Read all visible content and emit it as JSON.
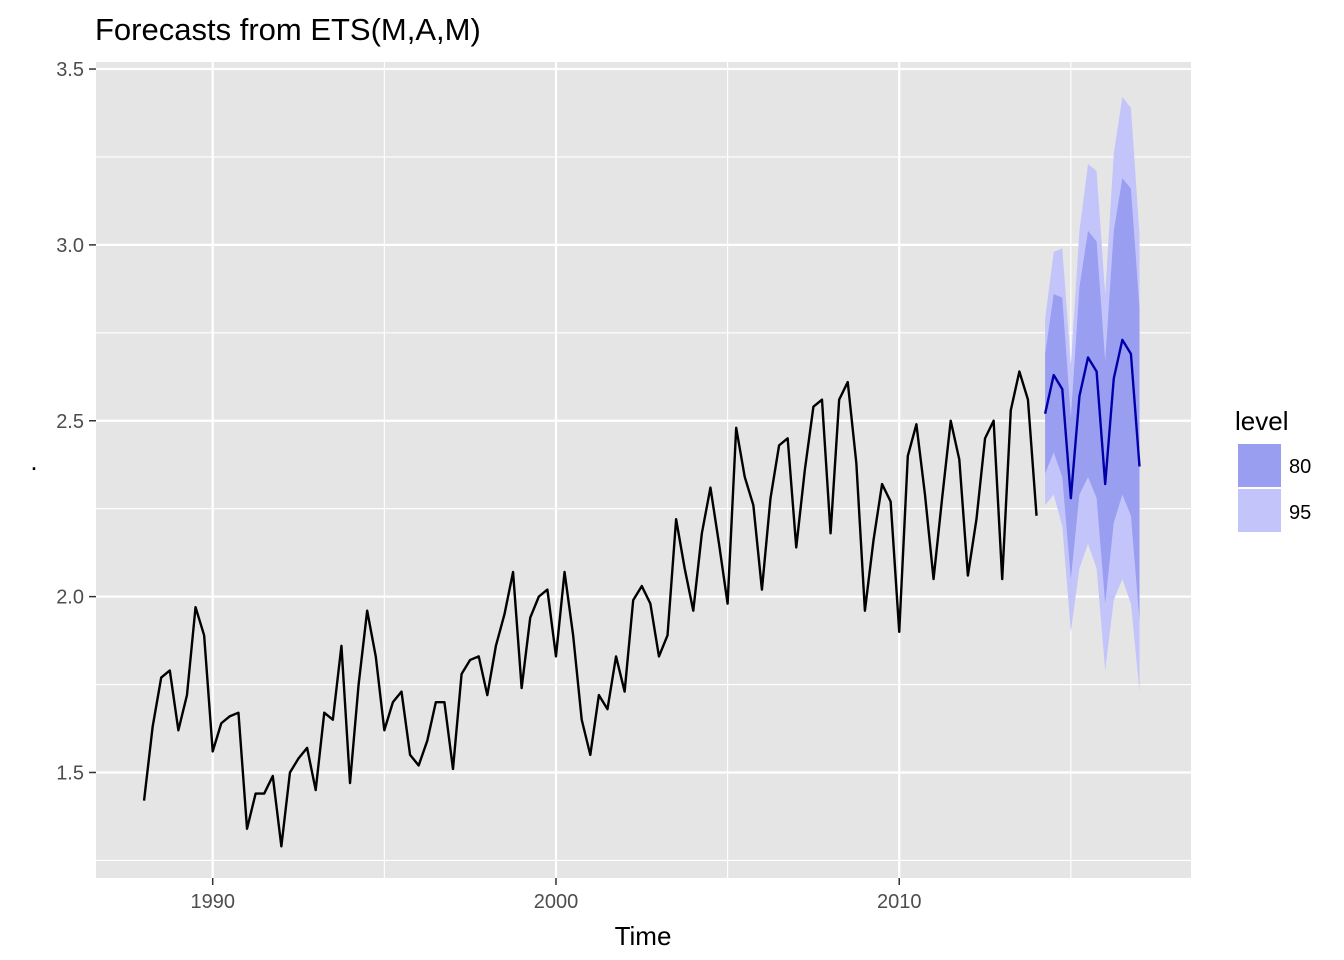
{
  "chart_data": {
    "type": "line",
    "title": "Forecasts from ETS(M,A,M)",
    "xlabel": "Time",
    "ylabel": ".",
    "xlim": [
      1986.6,
      2018.5
    ],
    "ylim": [
      1.2,
      3.52
    ],
    "x_ticks": [
      1990,
      2000,
      2010
    ],
    "x_tick_labels": [
      "1990",
      "2000",
      "2010"
    ],
    "y_ticks": [
      1.5,
      2.0,
      2.5,
      3.0,
      3.5
    ],
    "y_tick_labels": [
      "1.5",
      "2.0",
      "2.5",
      "3.0",
      "3.5"
    ],
    "grid": true,
    "legend": {
      "title": "level",
      "placement": "right",
      "entries": [
        {
          "label": "80",
          "color": "#9a9ef0"
        },
        {
          "label": "95",
          "color": "#c3c5fa"
        }
      ]
    },
    "colors": {
      "panel": "#e5e5e5",
      "grid": "#ffffff",
      "history_line": "#000000",
      "forecast_line": "#0000aa",
      "band80": "#9a9ef0",
      "band95": "#c3c5fa"
    },
    "history": {
      "x_start": 1988.0,
      "step": 0.25,
      "values": [
        1.42,
        1.63,
        1.77,
        1.79,
        1.62,
        1.72,
        1.97,
        1.89,
        1.56,
        1.64,
        1.66,
        1.67,
        1.34,
        1.44,
        1.44,
        1.49,
        1.29,
        1.5,
        1.54,
        1.57,
        1.45,
        1.67,
        1.65,
        1.86,
        1.47,
        1.75,
        1.96,
        1.83,
        1.62,
        1.7,
        1.73,
        1.55,
        1.52,
        1.59,
        1.7,
        1.7,
        1.51,
        1.78,
        1.82,
        1.83,
        1.72,
        1.86,
        1.95,
        2.07,
        1.74,
        1.94,
        2.0,
        2.02,
        1.83,
        2.07,
        1.89,
        1.65,
        1.55,
        1.72,
        1.68,
        1.83,
        1.73,
        1.99,
        2.03,
        1.98,
        1.83,
        1.89,
        2.22,
        2.08,
        1.96,
        2.18,
        2.31,
        2.15,
        1.98,
        2.48,
        2.34,
        2.26,
        2.02,
        2.28,
        2.43,
        2.45,
        2.14,
        2.36,
        2.54,
        2.56,
        2.18,
        2.56,
        2.61,
        2.38,
        1.96,
        2.16,
        2.32,
        2.27,
        1.9,
        2.4,
        2.49,
        2.29,
        2.05,
        2.28,
        2.5,
        2.39,
        2.06,
        2.22,
        2.45,
        2.5,
        2.05,
        2.53,
        2.64,
        2.56,
        2.23
      ]
    },
    "forecast": {
      "x_start": 2014.25,
      "step": 0.25,
      "mean": [
        2.52,
        2.63,
        2.59,
        2.28,
        2.57,
        2.68,
        2.64,
        2.32,
        2.62,
        2.73,
        2.69,
        2.37
      ],
      "lo80": [
        2.35,
        2.41,
        2.34,
        2.05,
        2.29,
        2.34,
        2.28,
        1.98,
        2.21,
        2.29,
        2.23,
        1.93
      ],
      "hi80": [
        2.69,
        2.86,
        2.85,
        2.51,
        2.88,
        3.04,
        3.01,
        2.67,
        3.04,
        3.19,
        3.16,
        2.82
      ],
      "lo95": [
        2.26,
        2.29,
        2.2,
        1.9,
        2.08,
        2.15,
        2.08,
        1.79,
        1.99,
        2.05,
        1.98,
        1.73
      ],
      "hi95": [
        2.79,
        2.98,
        2.99,
        2.66,
        3.04,
        3.23,
        3.21,
        2.86,
        3.26,
        3.42,
        3.39,
        3.03
      ]
    }
  }
}
